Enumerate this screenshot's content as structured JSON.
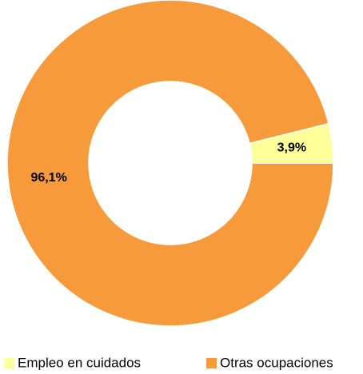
{
  "chart_data": {
    "type": "donut",
    "series": [
      {
        "name": "Empleo en cuidados",
        "color": "#ffff99",
        "values": [
          3.9
        ],
        "value_labels": [
          "3,9%"
        ]
      },
      {
        "name": "Otras ocupaciones",
        "color": "#f79a3b",
        "values": [
          96.1
        ],
        "value_labels": [
          "96,1%"
        ]
      }
    ],
    "legend": "bottom"
  }
}
